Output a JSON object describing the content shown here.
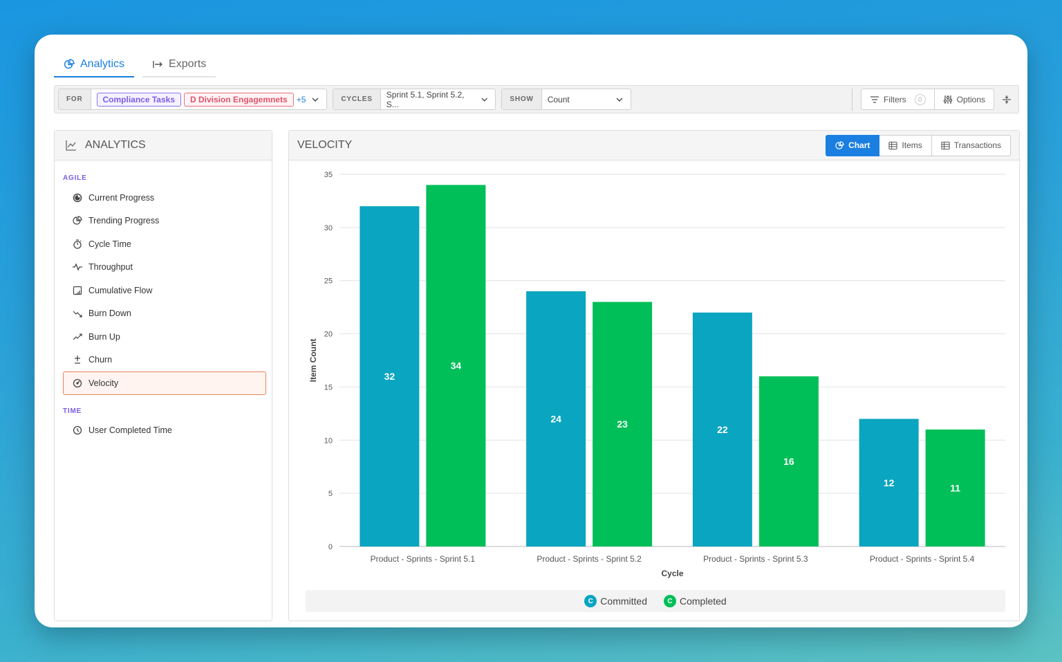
{
  "tabs": [
    {
      "label": "Analytics",
      "icon": "chart-pie-icon"
    },
    {
      "label": "Exports",
      "icon": "export-arrow-icon"
    }
  ],
  "filterbar": {
    "for_label": "FOR",
    "for_chips": [
      "Compliance Tasks",
      "D Division Engagemnets"
    ],
    "for_more": "+5",
    "cycles_label": "CYCLES",
    "cycles_value": "Sprint 5.1, Sprint 5.2, S...",
    "show_label": "SHOW",
    "show_value": "Count",
    "filters_label": "Filters",
    "filters_count": "0",
    "options_label": "Options"
  },
  "sidebar": {
    "title": "ANALYTICS",
    "sections": [
      {
        "title": "AGILE",
        "items": [
          "Current Progress",
          "Trending Progress",
          "Cycle Time",
          "Throughput",
          "Cumulative Flow",
          "Burn Down",
          "Burn Up",
          "Churn",
          "Velocity"
        ]
      },
      {
        "title": "TIME",
        "items": [
          "User Completed Time"
        ]
      }
    ],
    "active_item": "Velocity"
  },
  "panel": {
    "title": "VELOCITY",
    "views": [
      "Chart",
      "Items",
      "Transactions"
    ],
    "active_view": "Chart"
  },
  "colors": {
    "committed": "#0aa5c0",
    "completed": "#00bf58",
    "accent": "#1a7fe0"
  },
  "chart_data": {
    "type": "bar",
    "categories": [
      "Product - Sprints - Sprint 5.1",
      "Product - Sprints - Sprint 5.2",
      "Product - Sprints - Sprint 5.3",
      "Product - Sprints - Sprint 5.4"
    ],
    "series": [
      {
        "name": "Committed",
        "values": [
          32,
          24,
          22,
          12
        ]
      },
      {
        "name": "Completed",
        "values": [
          34,
          23,
          16,
          11
        ]
      }
    ],
    "legend_badge": "C",
    "xlabel": "Cycle",
    "ylabel": "Item Count",
    "ylim": [
      0,
      35
    ],
    "yticks": [
      0,
      5,
      10,
      15,
      20,
      25,
      30,
      35
    ],
    "grid": true,
    "legend_position": "bottom"
  }
}
